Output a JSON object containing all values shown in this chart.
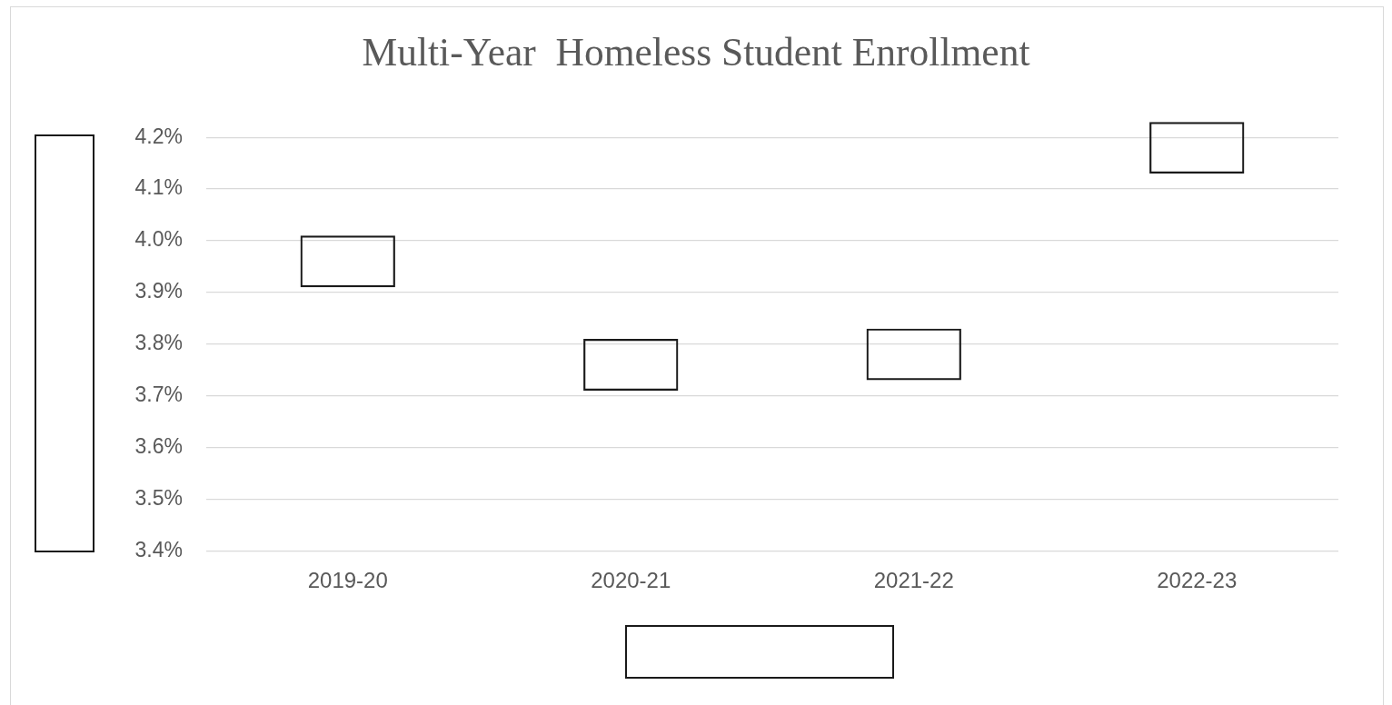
{
  "chart_data": {
    "type": "bar",
    "title": "Multi-Year  Homeless Student Enrollment",
    "categories": [
      "2019-20",
      "2020-21",
      "2021-22",
      "2022-23"
    ],
    "base": [
      3.91,
      3.71,
      3.73,
      4.13
    ],
    "values": [
      0.1,
      0.1,
      0.1,
      0.1
    ],
    "color": "#1a1a1a",
    "ylim": [
      3.4,
      4.23
    ],
    "yticks": [
      {
        "value": 3.4,
        "label": "3.4%"
      },
      {
        "value": 3.5,
        "label": "3.5%"
      },
      {
        "value": 3.6,
        "label": "3.6%"
      },
      {
        "value": 3.7,
        "label": "3.7%"
      },
      {
        "value": 3.8,
        "label": "3.8%"
      },
      {
        "value": 3.9,
        "label": "3.9%"
      },
      {
        "value": 4.0,
        "label": "4.0%"
      },
      {
        "value": 4.1,
        "label": "4.1%"
      },
      {
        "value": 4.2,
        "label": "4.2%"
      }
    ],
    "grid": "y"
  }
}
